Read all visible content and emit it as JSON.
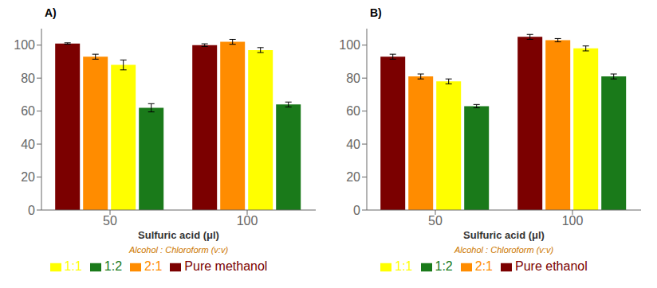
{
  "chart_data": [
    {
      "type": "bar",
      "title": "A)",
      "categories": [
        "50",
        "100"
      ],
      "series": [
        {
          "name": "Pure methanol",
          "color": "#7B0000",
          "values": [
            101,
            100
          ],
          "errors": [
            0.4,
            0.8
          ]
        },
        {
          "name": "2:1",
          "color": "#FF8C00",
          "values": [
            93,
            102
          ],
          "errors": [
            1.5,
            1.5
          ]
        },
        {
          "name": "1:1",
          "color": "#FFFF00",
          "values": [
            88,
            97
          ],
          "errors": [
            3.0,
            1.5
          ]
        },
        {
          "name": "1:2",
          "color": "#1A7A1A",
          "values": [
            62,
            64
          ],
          "errors": [
            2.5,
            1.5
          ]
        }
      ],
      "xlabel": "Sulfuric acid (μl)",
      "annotation": "Alcohol : Chloroform (v:v)",
      "ylim": [
        0,
        110
      ],
      "yticks": [
        0,
        20,
        40,
        60,
        80,
        100
      ],
      "grid": false,
      "legend": "bottom"
    },
    {
      "type": "bar",
      "title": "B)",
      "categories": [
        "50",
        "100"
      ],
      "series": [
        {
          "name": "Pure ethanol",
          "color": "#7B0000",
          "values": [
            93,
            105
          ],
          "errors": [
            1.5,
            1.5
          ]
        },
        {
          "name": "2:1",
          "color": "#FF8C00",
          "values": [
            81,
            103
          ],
          "errors": [
            1.5,
            1.0
          ]
        },
        {
          "name": "1:1",
          "color": "#FFFF00",
          "values": [
            78,
            98
          ],
          "errors": [
            1.5,
            1.5
          ]
        },
        {
          "name": "1:2",
          "color": "#1A7A1A",
          "values": [
            63,
            81
          ],
          "errors": [
            1.0,
            1.5
          ]
        }
      ],
      "xlabel": "Sulfuric acid (μl)",
      "annotation": "Alcohol : Chloroform (v:v)",
      "ylim": [
        0,
        110
      ],
      "yticks": [
        0,
        20,
        40,
        60,
        80,
        100
      ],
      "grid": false,
      "legend": "bottom"
    }
  ]
}
